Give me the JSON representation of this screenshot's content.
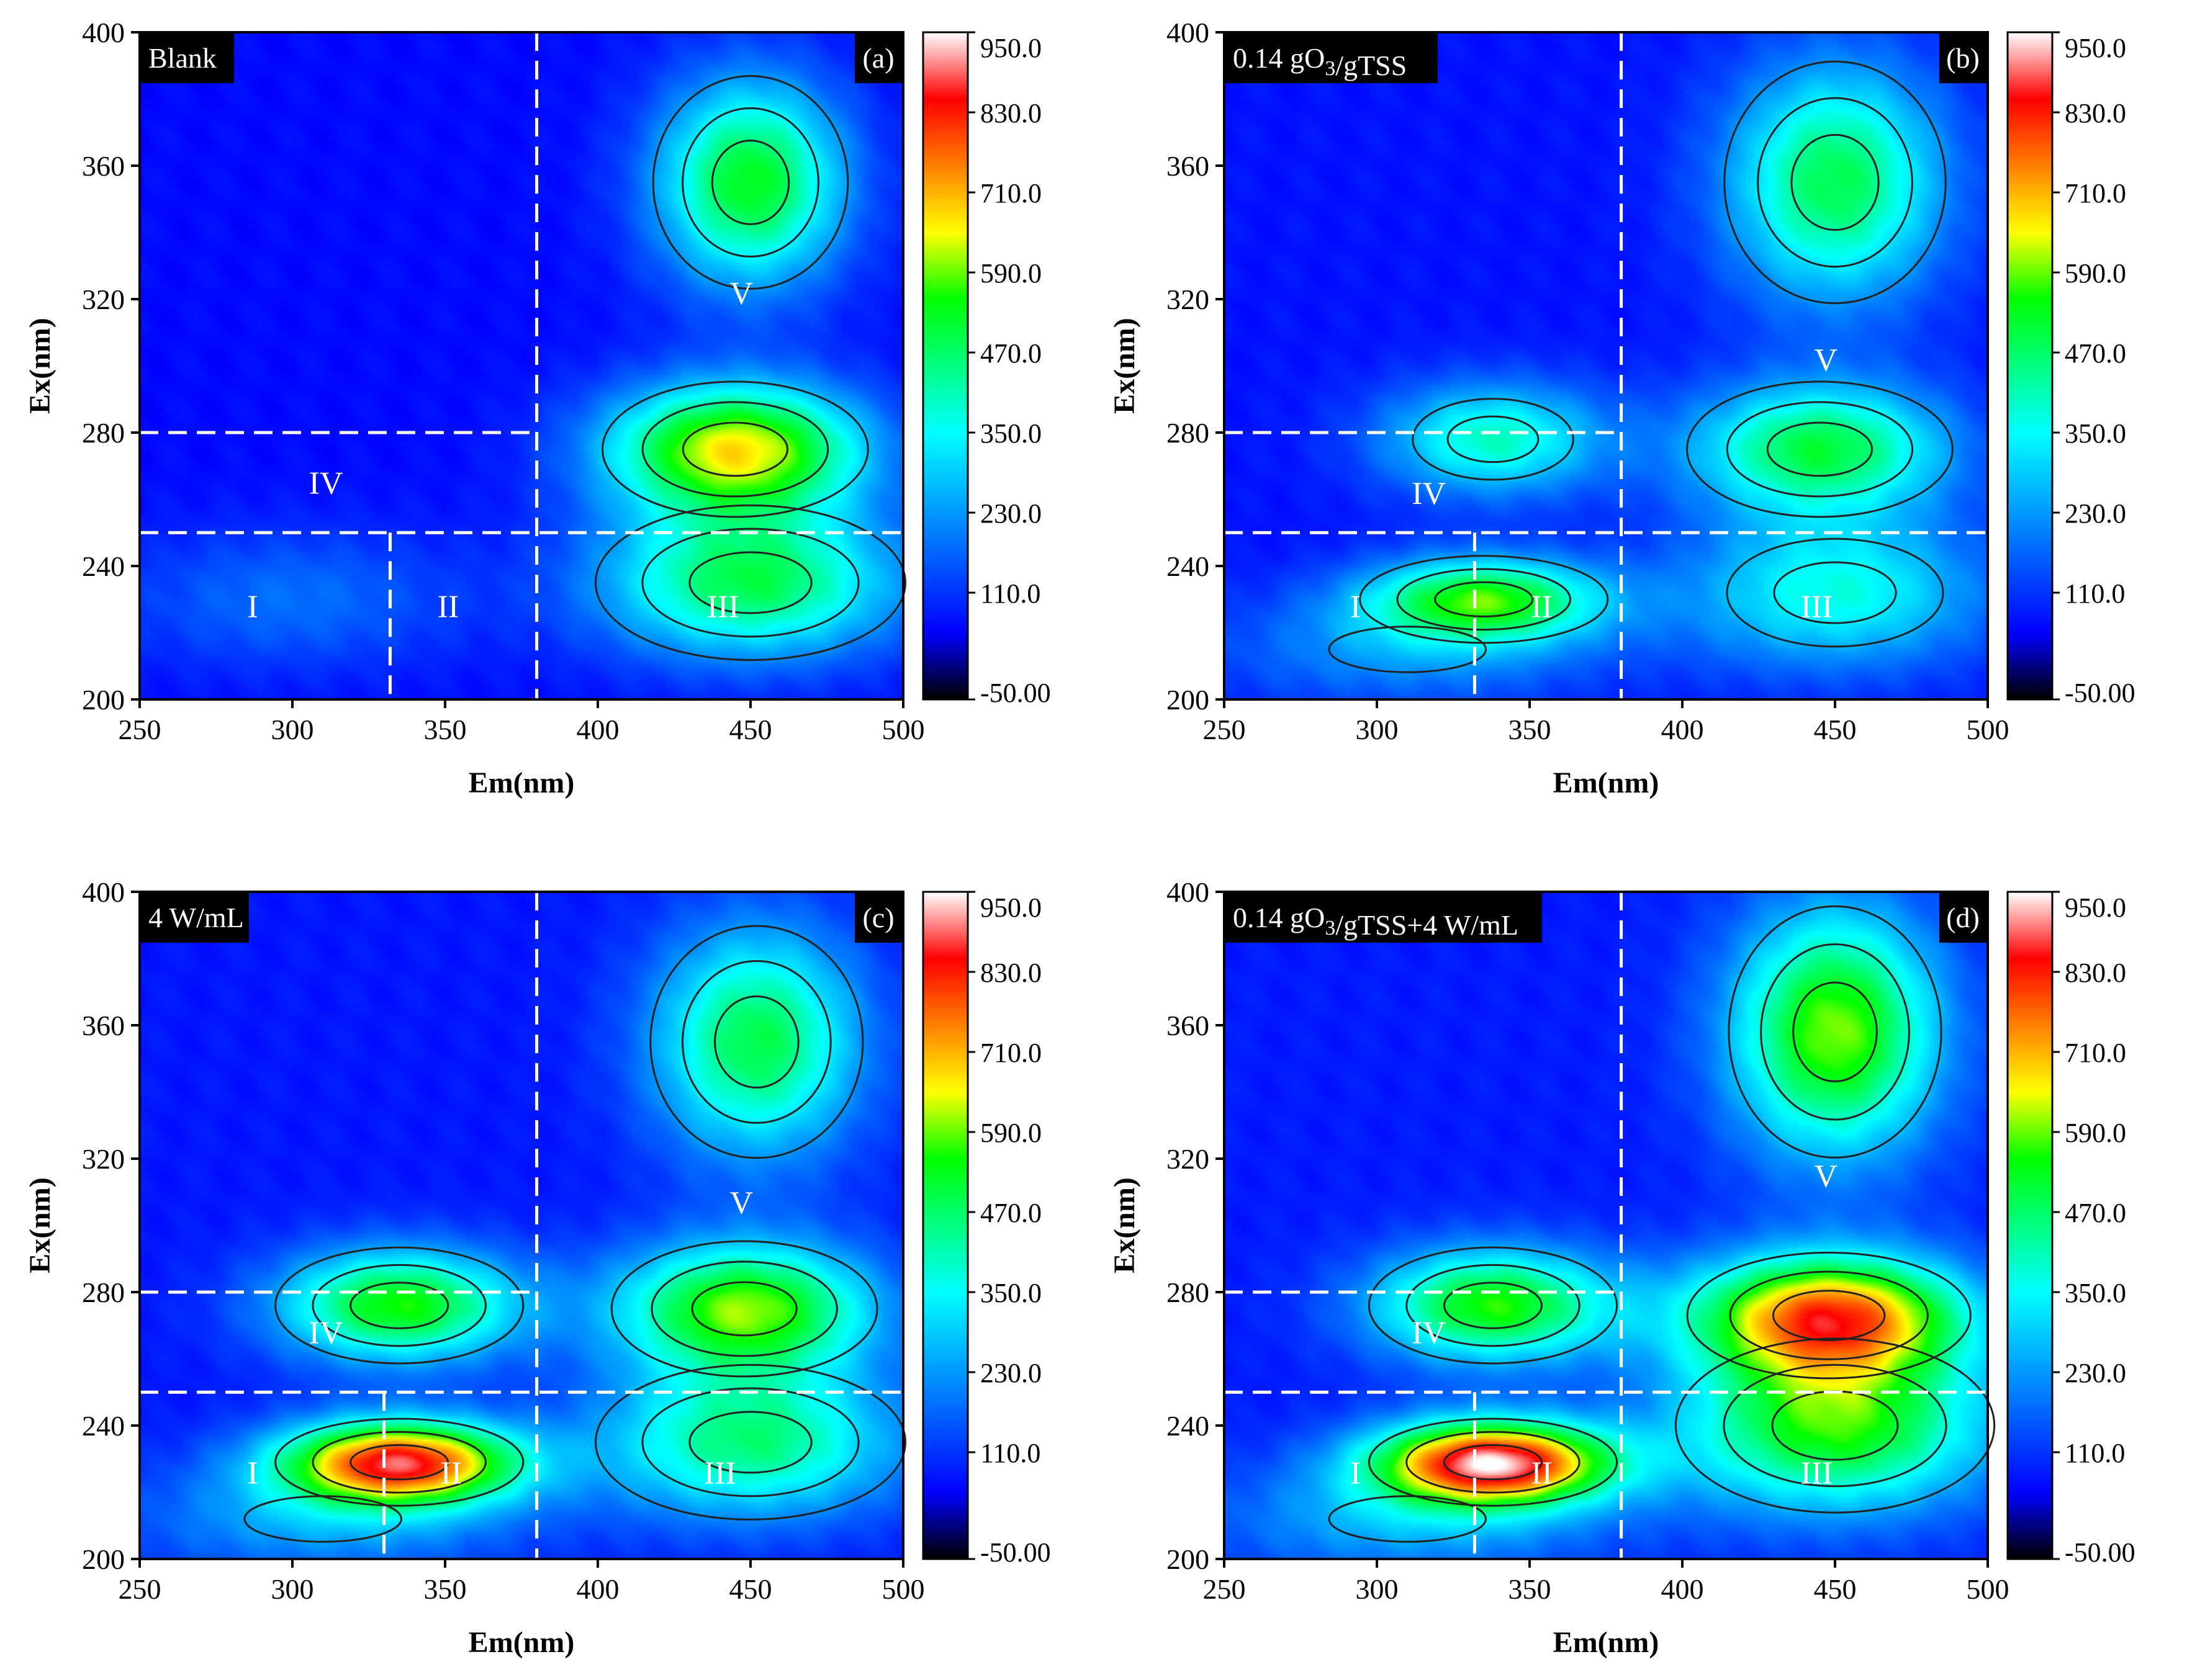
{
  "colors": {
    "colormap": [
      "#000000",
      "#0000ff",
      "#0055ff",
      "#00aaff",
      "#00ffff",
      "#00ff80",
      "#00ff00",
      "#ffff00",
      "#ff8000",
      "#ff0000",
      "#ffffff"
    ],
    "divider_line": "#ffffff",
    "contour_line": "#222222",
    "tag_bg": "#000000",
    "tag_text": "#ffffff"
  },
  "chart_data": [
    {
      "type": "heatmap",
      "panel_letter": "(a)",
      "condition_label": "Blank",
      "xlabel": "Em(nm)",
      "ylabel": "Ex(nm)",
      "xlim": [
        250,
        500
      ],
      "ylim": [
        200,
        400
      ],
      "xticks": [
        "250",
        "300",
        "350",
        "400",
        "450",
        "500"
      ],
      "yticks": [
        "200",
        "240",
        "280",
        "320",
        "360",
        "400"
      ],
      "base_level": 60,
      "peaks": [
        {
          "em": 450,
          "ex": 355,
          "value": 470,
          "sigma_em": 22,
          "sigma_ex": 22
        },
        {
          "em": 445,
          "ex": 275,
          "value": 600,
          "sigma_em": 30,
          "sigma_ex": 14
        },
        {
          "em": 450,
          "ex": 235,
          "value": 430,
          "sigma_em": 35,
          "sigma_ex": 16
        },
        {
          "em": 300,
          "ex": 230,
          "value": 120,
          "sigma_em": 40,
          "sigma_ex": 15
        }
      ],
      "divider_lines": {
        "h": [
          280,
          250
        ],
        "v": [
          380,
          332
        ]
      },
      "regions": [
        {
          "label": "I",
          "em": 287,
          "ex": 228
        },
        {
          "label": "II",
          "em": 351,
          "ex": 228
        },
        {
          "label": "III",
          "em": 441,
          "ex": 228
        },
        {
          "label": "IV",
          "em": 311,
          "ex": 265
        },
        {
          "label": "V",
          "em": 447,
          "ex": 322
        }
      ],
      "colorbar": {
        "min": -50.0,
        "max": 950.0,
        "ticks": [
          "950.0",
          "830.0",
          "710.0",
          "590.0",
          "470.0",
          "350.0",
          "230.0",
          "110.0",
          "-50.00"
        ]
      }
    },
    {
      "type": "heatmap",
      "panel_letter": "(b)",
      "condition_label": "0.14 gO3/gTSS",
      "xlabel": "Em(nm)",
      "ylabel": "Ex(nm)",
      "xlim": [
        250,
        500
      ],
      "ylim": [
        200,
        400
      ],
      "xticks": [
        "250",
        "300",
        "350",
        "400",
        "450",
        "500"
      ],
      "yticks": [
        "200",
        "240",
        "280",
        "320",
        "360",
        "400"
      ],
      "base_level": 70,
      "peaks": [
        {
          "em": 450,
          "ex": 355,
          "value": 420,
          "sigma_em": 25,
          "sigma_ex": 25
        },
        {
          "em": 445,
          "ex": 275,
          "value": 430,
          "sigma_em": 30,
          "sigma_ex": 14
        },
        {
          "em": 450,
          "ex": 232,
          "value": 300,
          "sigma_em": 35,
          "sigma_ex": 16
        },
        {
          "em": 338,
          "ex": 278,
          "value": 330,
          "sigma_em": 26,
          "sigma_ex": 12
        },
        {
          "em": 335,
          "ex": 230,
          "value": 460,
          "sigma_em": 28,
          "sigma_ex": 9
        },
        {
          "em": 310,
          "ex": 215,
          "value": 150,
          "sigma_em": 45,
          "sigma_ex": 12
        }
      ],
      "divider_lines": {
        "h": [
          280,
          250
        ],
        "v": [
          380,
          332
        ]
      },
      "regions": [
        {
          "label": "I",
          "em": 293,
          "ex": 228
        },
        {
          "label": "II",
          "em": 354,
          "ex": 228
        },
        {
          "label": "III",
          "em": 444,
          "ex": 228
        },
        {
          "label": "IV",
          "em": 317,
          "ex": 262
        },
        {
          "label": "V",
          "em": 447,
          "ex": 302
        }
      ],
      "colorbar": {
        "min": -50.0,
        "max": 950.0,
        "ticks": [
          "950.0",
          "830.0",
          "710.0",
          "590.0",
          "470.0",
          "350.0",
          "230.0",
          "110.0",
          "-50.00"
        ]
      }
    },
    {
      "type": "heatmap",
      "panel_letter": "(c)",
      "condition_label": "4 W/mL",
      "xlabel": "Em(nm)",
      "ylabel": "Ex(nm)",
      "xlim": [
        250,
        500
      ],
      "ylim": [
        200,
        400
      ],
      "xticks": [
        "250",
        "300",
        "350",
        "400",
        "450",
        "500"
      ],
      "yticks": [
        "200",
        "240",
        "280",
        "320",
        "360",
        "400"
      ],
      "base_level": 75,
      "peaks": [
        {
          "em": 452,
          "ex": 355,
          "value": 420,
          "sigma_em": 24,
          "sigma_ex": 24
        },
        {
          "em": 448,
          "ex": 275,
          "value": 520,
          "sigma_em": 30,
          "sigma_ex": 14
        },
        {
          "em": 450,
          "ex": 235,
          "value": 380,
          "sigma_em": 35,
          "sigma_ex": 16
        },
        {
          "em": 335,
          "ex": 276,
          "value": 480,
          "sigma_em": 28,
          "sigma_ex": 12
        },
        {
          "em": 335,
          "ex": 229,
          "value": 760,
          "sigma_em": 28,
          "sigma_ex": 9
        },
        {
          "em": 310,
          "ex": 212,
          "value": 170,
          "sigma_em": 45,
          "sigma_ex": 12
        }
      ],
      "divider_lines": {
        "h": [
          280,
          250
        ],
        "v": [
          380,
          330
        ]
      },
      "regions": [
        {
          "label": "I",
          "em": 287,
          "ex": 226
        },
        {
          "label": "II",
          "em": 352,
          "ex": 226
        },
        {
          "label": "III",
          "em": 440,
          "ex": 226
        },
        {
          "label": "IV",
          "em": 311,
          "ex": 268
        },
        {
          "label": "V",
          "em": 447,
          "ex": 307
        }
      ],
      "colorbar": {
        "min": -50.0,
        "max": 950.0,
        "ticks": [
          "950.0",
          "830.0",
          "710.0",
          "590.0",
          "470.0",
          "350.0",
          "230.0",
          "110.0",
          "-50.00"
        ]
      }
    },
    {
      "type": "heatmap",
      "panel_letter": "(d)",
      "condition_label": "0.14 gO3/gTSS+4 W/mL",
      "xlabel": "Em(nm)",
      "ylabel": "Ex(nm)",
      "xlim": [
        250,
        500
      ],
      "ylim": [
        200,
        400
      ],
      "xticks": [
        "250",
        "300",
        "350",
        "400",
        "450",
        "500"
      ],
      "yticks": [
        "200",
        "240",
        "280",
        "320",
        "360",
        "400"
      ],
      "base_level": 80,
      "peaks": [
        {
          "em": 450,
          "ex": 358,
          "value": 520,
          "sigma_em": 24,
          "sigma_ex": 26
        },
        {
          "em": 448,
          "ex": 273,
          "value": 680,
          "sigma_em": 32,
          "sigma_ex": 13
        },
        {
          "em": 450,
          "ex": 240,
          "value": 480,
          "sigma_em": 36,
          "sigma_ex": 18
        },
        {
          "em": 338,
          "ex": 276,
          "value": 480,
          "sigma_em": 28,
          "sigma_ex": 12
        },
        {
          "em": 338,
          "ex": 229,
          "value": 820,
          "sigma_em": 28,
          "sigma_ex": 9
        },
        {
          "em": 310,
          "ex": 212,
          "value": 180,
          "sigma_em": 45,
          "sigma_ex": 12
        }
      ],
      "divider_lines": {
        "h": [
          280,
          250
        ],
        "v": [
          380,
          332
        ]
      },
      "regions": [
        {
          "label": "I",
          "em": 293,
          "ex": 226
        },
        {
          "label": "II",
          "em": 354,
          "ex": 226
        },
        {
          "label": "III",
          "em": 444,
          "ex": 226
        },
        {
          "label": "IV",
          "em": 317,
          "ex": 268
        },
        {
          "label": "V",
          "em": 447,
          "ex": 315
        }
      ],
      "colorbar": {
        "min": -50.0,
        "max": 950.0,
        "ticks": [
          "950.0",
          "830.0",
          "710.0",
          "590.0",
          "470.0",
          "350.0",
          "230.0",
          "110.0",
          "-50.00"
        ]
      }
    }
  ]
}
